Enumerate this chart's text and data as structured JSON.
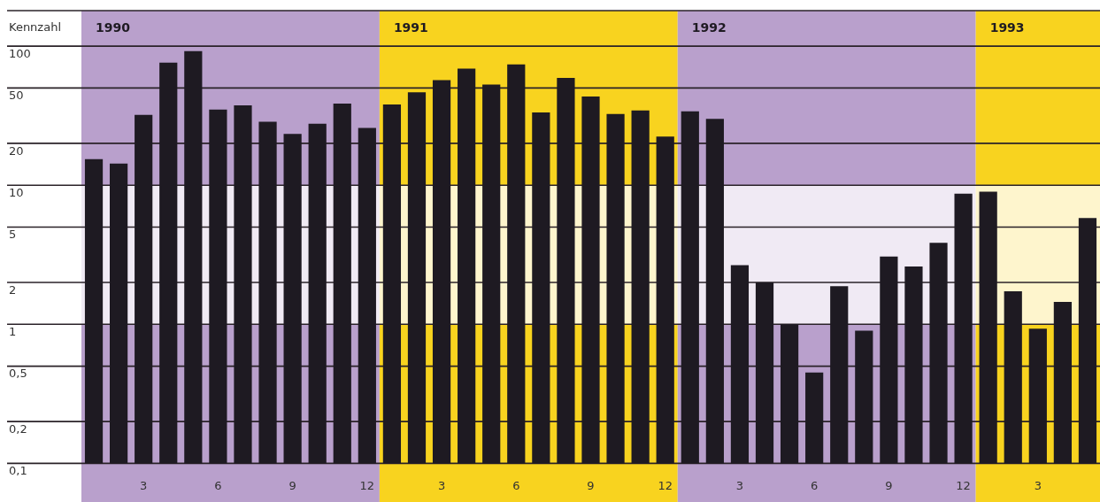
{
  "chart_data": {
    "type": "bar",
    "ylabel": "Kennzahl",
    "categories": [
      null,
      null,
      "3",
      null,
      null,
      "6",
      null,
      null,
      "9",
      null,
      null,
      "12",
      null,
      null,
      "3",
      null,
      null,
      "6",
      null,
      null,
      "9",
      null,
      null,
      "12",
      null,
      null,
      "3",
      null,
      null,
      "6",
      null,
      null,
      "9",
      null,
      null,
      "12",
      null,
      null,
      "3",
      null,
      null
    ],
    "values": [
      15.4,
      14.3,
      32,
      76,
      92,
      35,
      37.5,
      28.6,
      23.4,
      27.7,
      38.6,
      25.8,
      38,
      46.5,
      57,
      69,
      53,
      74,
      33.4,
      59,
      43.5,
      32.5,
      34.5,
      22.4,
      34,
      30,
      2.66,
      2.0,
      1.0,
      0.45,
      1.88,
      0.9,
      3.07,
      2.6,
      3.86,
      8.7,
      9.0,
      1.73,
      0.93,
      1.45,
      5.8
    ],
    "color": "#1e1a22",
    "log": true,
    "ylim": [
      0.1,
      180
    ],
    "yticks": [
      {
        "value": 0.1,
        "label": "0,1"
      },
      {
        "value": 0.2,
        "label": "0,2"
      },
      {
        "value": 0.5,
        "label": "0,5"
      },
      1,
      2,
      5,
      10,
      20,
      50,
      100
    ],
    "grid": "y",
    "legend": false,
    "annotations": [
      "1990",
      "1991",
      "1992",
      "1993"
    ],
    "bands": [
      {
        "axis": "y",
        "from": 1,
        "to": 10,
        "color": "#ffffff"
      }
    ]
  }
}
